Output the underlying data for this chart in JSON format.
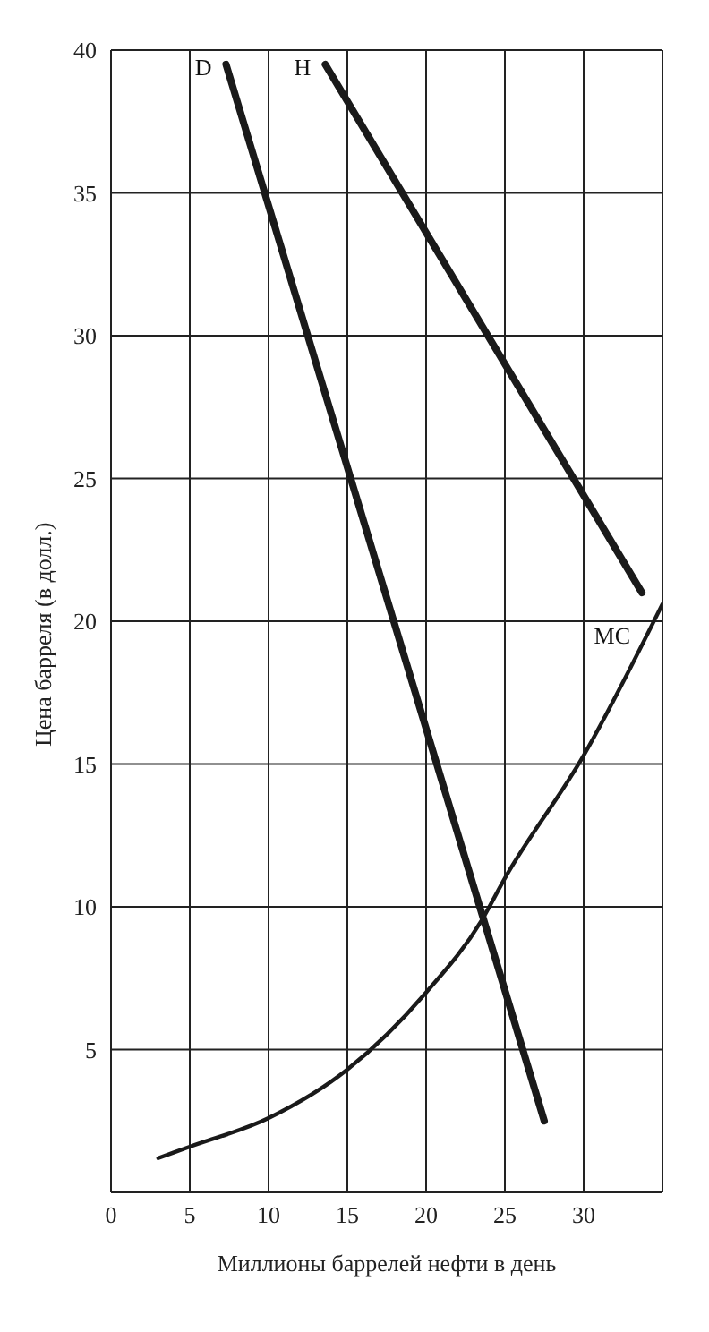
{
  "chart_data": {
    "type": "line",
    "xlabel": "Миллионы баррелей нефти в день",
    "ylabel": "Цена барреля (в долл.)",
    "series": [
      {
        "name": "D",
        "color": "#1a1a1a",
        "x": [
          7.3,
          27.5
        ],
        "values": [
          39.5,
          2.5
        ]
      },
      {
        "name": "H",
        "color": "#1a1a1a",
        "x": [
          13.6,
          33.7
        ],
        "values": [
          39.5,
          21
        ]
      },
      {
        "name": "MC",
        "color": "#1a1a1a",
        "x": [
          3,
          5,
          10,
          15,
          20,
          23.5,
          25,
          30,
          35
        ],
        "values": [
          1.2,
          1.6,
          2.6,
          4.3,
          7,
          9.5,
          11,
          15.3,
          20.6
        ]
      }
    ],
    "xlim": [
      0,
      35
    ],
    "xticks": [
      0,
      5,
      10,
      15,
      20,
      25,
      30,
      {
        "value": 35,
        "label": null
      }
    ],
    "ylim": [
      0,
      40
    ],
    "yticks": [
      {
        "value": 0,
        "label": null
      },
      5,
      10,
      15,
      20,
      25,
      30,
      35,
      40
    ],
    "grid": true,
    "legend": false,
    "marker": "none",
    "line_style": "solid"
  }
}
